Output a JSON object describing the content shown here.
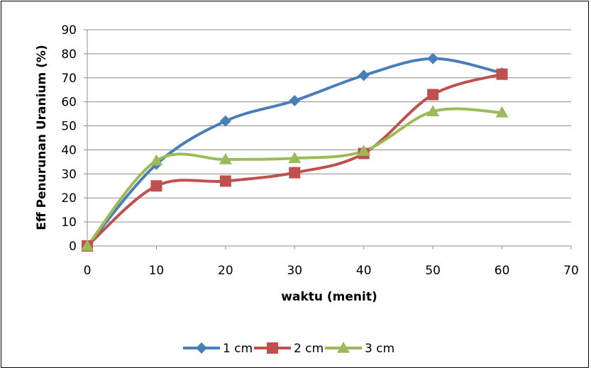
{
  "chart_data": {
    "type": "line",
    "title": "",
    "xlabel": "waktu (menit)",
    "ylabel": "Eff Penurunan Uranium (%)",
    "xlim": [
      0,
      70
    ],
    "ylim": [
      0,
      90
    ],
    "x_ticks": [
      0,
      10,
      20,
      30,
      40,
      50,
      60,
      70
    ],
    "y_ticks": [
      0,
      10,
      20,
      30,
      40,
      50,
      60,
      70,
      80,
      90
    ],
    "grid": "horizontal",
    "smooth": true,
    "legend_position": "bottom",
    "series": [
      {
        "name": "1 cm",
        "color": "#4a7ebb",
        "marker": "diamond",
        "x": [
          0,
          10,
          20,
          30,
          40,
          50,
          60
        ],
        "y": [
          0,
          34,
          52,
          60.5,
          71,
          78,
          72
        ]
      },
      {
        "name": "2 cm",
        "color": "#c0504d",
        "marker": "square",
        "x": [
          0,
          10,
          20,
          30,
          40,
          50,
          60
        ],
        "y": [
          0,
          25,
          27,
          30.5,
          38.5,
          63,
          71.5
        ]
      },
      {
        "name": "3 cm",
        "color": "#9bbb59",
        "marker": "triangle",
        "x": [
          0,
          10,
          20,
          30,
          40,
          50,
          60
        ],
        "y": [
          0,
          35.5,
          36,
          36.5,
          39.5,
          56,
          55.5
        ]
      }
    ]
  }
}
